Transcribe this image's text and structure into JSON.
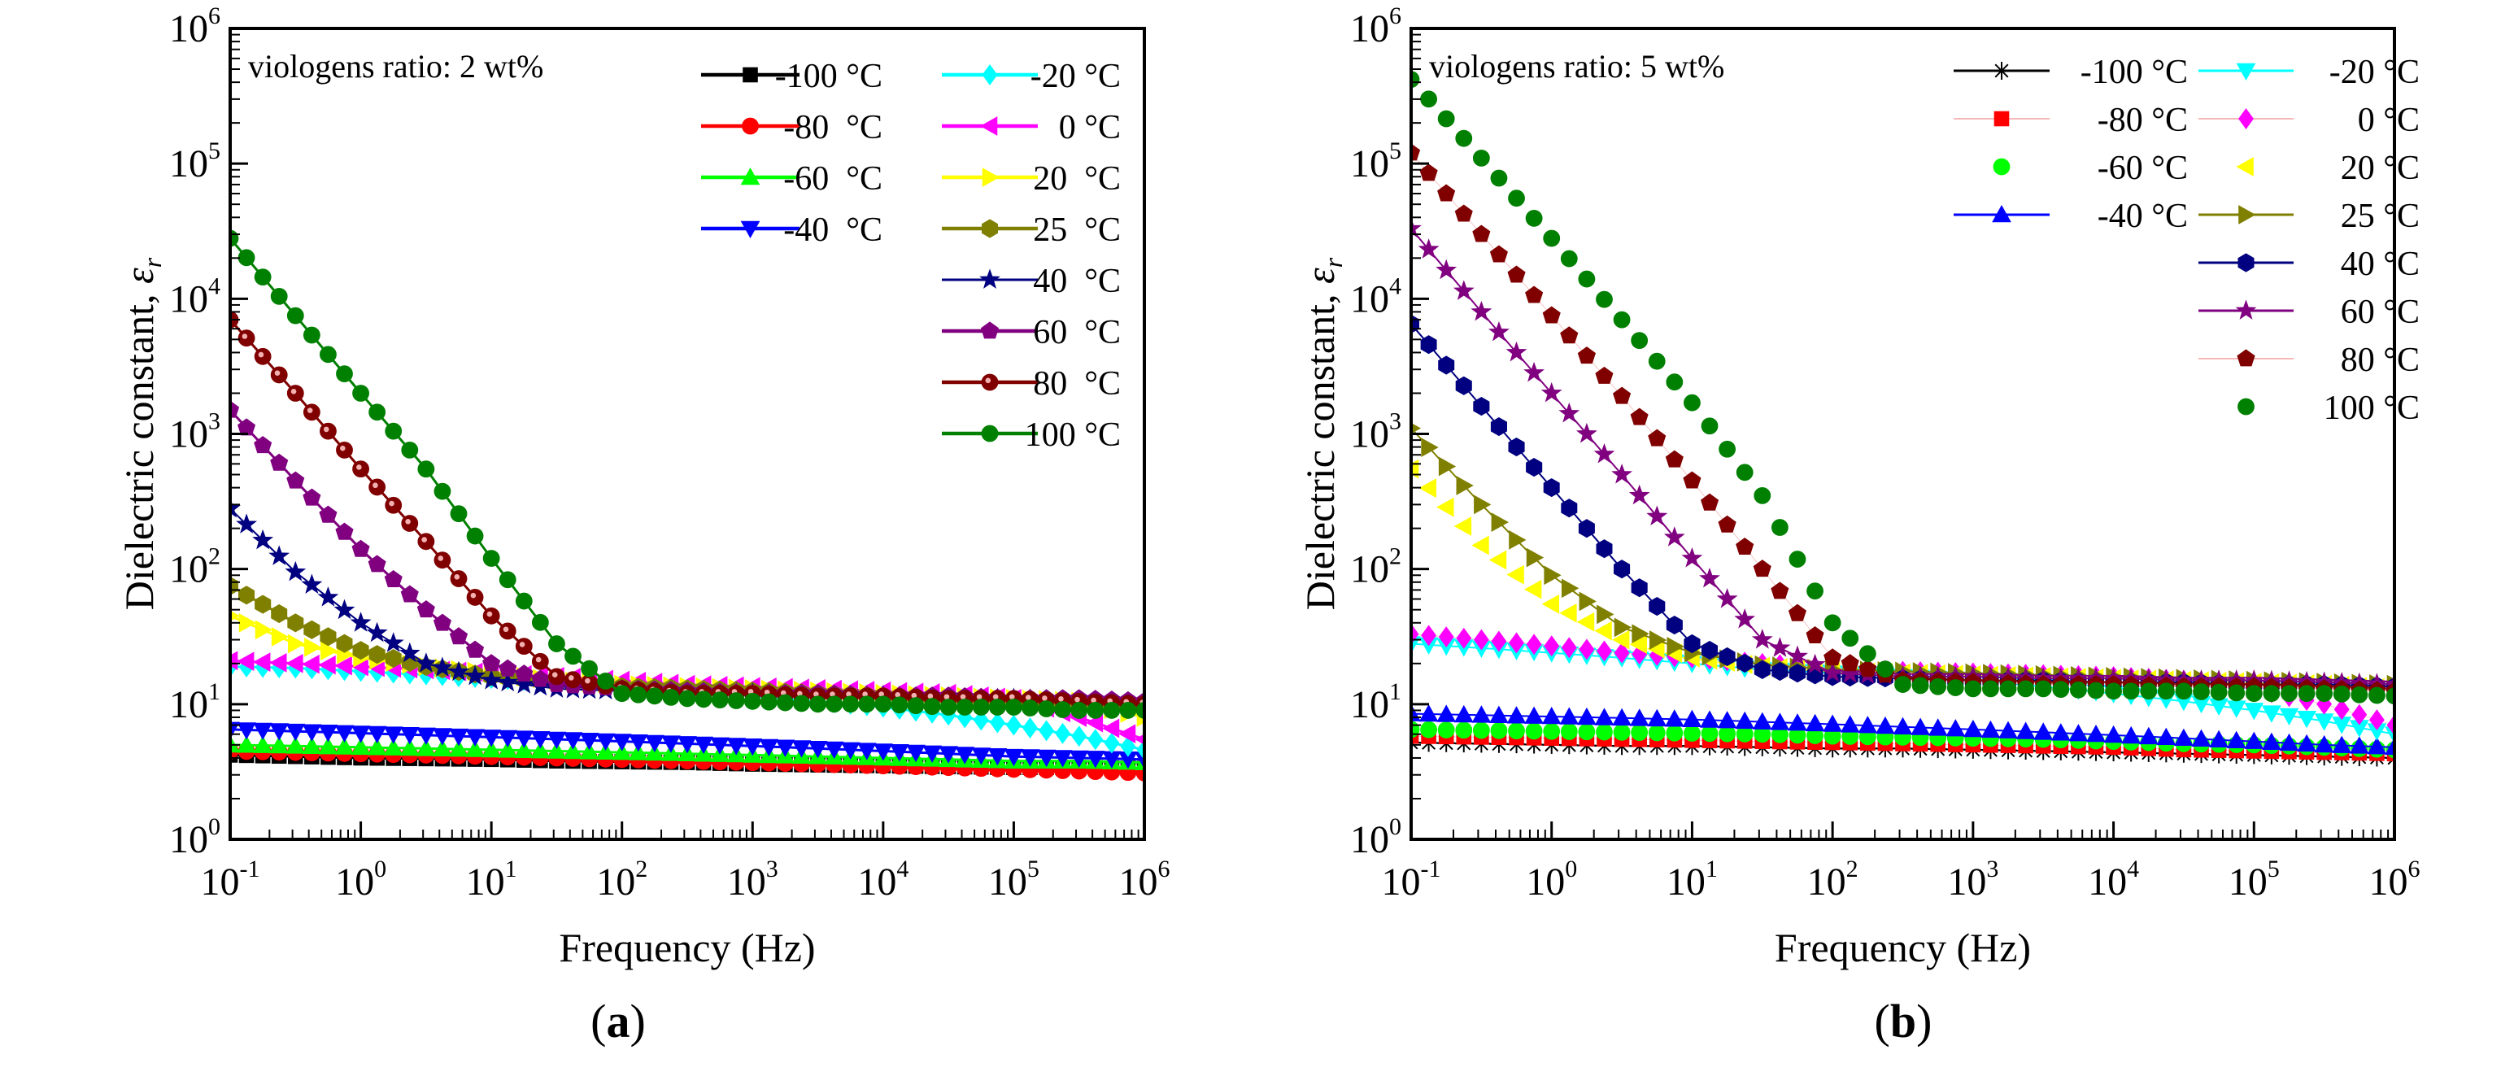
{
  "chart_data": [
    {
      "type": "scatter",
      "panel_label": "a",
      "annotation": "viologens ratio: 2 wt%",
      "xlabel": "Frequency (Hz)",
      "ylabel_main": "Dielectric constant, ",
      "ylabel_symbol": "ε",
      "ylabel_sub": "r",
      "xscale": "log",
      "yscale": "log",
      "xlim": [
        0.1,
        1000000
      ],
      "ylim": [
        1,
        1000000
      ],
      "tick_base": "10",
      "xtick_exponents": [
        "-1",
        "0",
        "1",
        "2",
        "3",
        "4",
        "5",
        "6"
      ],
      "ytick_exponents": [
        "0",
        "1",
        "2",
        "3",
        "4",
        "5",
        "6"
      ],
      "legend_placement": "top-right",
      "x": [
        0.1,
        0.316,
        1,
        3.16,
        10,
        31.6,
        100,
        316,
        1000,
        3160,
        10000,
        31600,
        100000,
        316000,
        1000000
      ],
      "series": [
        {
          "name": "-100 °C",
          "color": "#000000",
          "marker": "square",
          "values": [
            4.2,
            4.1,
            4.0,
            3.95,
            3.9,
            3.8,
            3.75,
            3.7,
            3.6,
            3.55,
            3.5,
            3.45,
            3.4,
            3.4,
            3.35
          ]
        },
        {
          "name": "-80  °C",
          "color": "#ff0000",
          "marker": "circle",
          "values": [
            4.5,
            4.4,
            4.3,
            4.2,
            4.1,
            4.0,
            3.9,
            3.8,
            3.7,
            3.6,
            3.5,
            3.4,
            3.3,
            3.2,
            3.1
          ]
        },
        {
          "name": "-60  °C",
          "color": "#00ff00",
          "marker": "triangle-up",
          "values": [
            5.0,
            4.9,
            4.8,
            4.7,
            4.6,
            4.5,
            4.4,
            4.3,
            4.2,
            4.1,
            4.0,
            3.9,
            3.8,
            3.8,
            3.7
          ]
        },
        {
          "name": "-40  °C",
          "color": "#0000ff",
          "marker": "triangle-down",
          "values": [
            6.5,
            6.3,
            6.1,
            5.9,
            5.7,
            5.5,
            5.3,
            5.1,
            4.9,
            4.7,
            4.5,
            4.3,
            4.1,
            4.0,
            3.9
          ]
        },
        {
          "name": "-20 °C",
          "color": "#00ffff",
          "marker": "diamond",
          "values": [
            19,
            18.5,
            17.5,
            16.5,
            15.5,
            14.5,
            13.5,
            12.5,
            11.5,
            10.5,
            9.5,
            8.3,
            7,
            5.8,
            4.6
          ]
        },
        {
          "name": "0 °C",
          "color": "#ff00ff",
          "marker": "triangle-left",
          "values": [
            21,
            20,
            19,
            18,
            17,
            16,
            15,
            14,
            13.5,
            13,
            12.5,
            12,
            11,
            8,
            5.5
          ]
        },
        {
          "name": "20  °C",
          "color": "#ffff00",
          "marker": "triangle-right",
          "values": [
            45,
            28,
            22,
            19,
            17,
            15,
            14,
            13.5,
            13,
            12.5,
            12,
            11.5,
            11,
            10.5,
            8
          ]
        },
        {
          "name": "25  °C",
          "color": "#808000",
          "marker": "hexagon",
          "values": [
            75,
            40,
            25,
            19,
            16,
            14.5,
            13.5,
            13,
            12.5,
            12,
            11.5,
            11,
            10.5,
            10,
            9.5
          ]
        },
        {
          "name": "40  °C",
          "color": "#000080",
          "marker": "star",
          "values": [
            280,
            95,
            40,
            20,
            15,
            13,
            12.5,
            12,
            12,
            11.5,
            11.5,
            11,
            11,
            10.5,
            10
          ]
        },
        {
          "name": "60  °C",
          "color": "#800080",
          "marker": "pentagon",
          "values": [
            1500,
            450,
            140,
            50,
            20,
            14,
            13,
            12.5,
            12,
            12,
            11.5,
            11.5,
            11,
            11,
            10.5
          ]
        },
        {
          "name": "80  °C",
          "color": "#800000",
          "marker": "ring",
          "values": [
            7000,
            2000,
            550,
            160,
            45,
            16,
            13,
            12,
            12,
            11.5,
            11.5,
            11,
            11,
            10.5,
            10
          ]
        },
        {
          "name": "100 °C",
          "color": "#008000",
          "marker": "circle",
          "values": [
            28000,
            7500,
            2000,
            550,
            120,
            28,
            12,
            11,
            10.5,
            10,
            10,
            9.5,
            9.5,
            9,
            9
          ]
        }
      ]
    },
    {
      "type": "scatter",
      "panel_label": "b",
      "annotation": "viologens ratio: 5 wt%",
      "xlabel": "Frequency (Hz)",
      "ylabel_main": "Dielectric constant, ",
      "ylabel_symbol": "ε",
      "ylabel_sub": "r",
      "xscale": "log",
      "yscale": "log",
      "xlim": [
        0.1,
        1000000
      ],
      "ylim": [
        1,
        1000000
      ],
      "tick_base": "10",
      "xtick_exponents": [
        "-1",
        "0",
        "1",
        "2",
        "3",
        "4",
        "5",
        "6"
      ],
      "ytick_exponents": [
        "0",
        "1",
        "2",
        "3",
        "4",
        "5",
        "6"
      ],
      "legend_placement": "top-right",
      "x": [
        0.1,
        0.316,
        1,
        3.16,
        10,
        31.6,
        100,
        316,
        1000,
        3160,
        10000,
        31600,
        100000,
        316000,
        1000000
      ],
      "series": [
        {
          "name": "-100 °C",
          "color": "#000000",
          "marker": "asterisk",
          "values": [
            5.2,
            5.1,
            5.0,
            4.9,
            4.9,
            4.8,
            4.7,
            4.7,
            4.6,
            4.5,
            4.4,
            4.3,
            4.2,
            4.1,
            4.0
          ]
        },
        {
          "name": "-80 °C",
          "color": "#ff0000",
          "marker": "square",
          "values": [
            5.8,
            5.7,
            5.6,
            5.5,
            5.4,
            5.3,
            5.2,
            5.1,
            5.0,
            4.9,
            4.8,
            4.6,
            4.5,
            4.4,
            4.3
          ]
        },
        {
          "name": "-60 °C",
          "color": "#00ff00",
          "marker": "circle",
          "values": [
            6.5,
            6.4,
            6.3,
            6.2,
            6.1,
            6.0,
            5.8,
            5.7,
            5.6,
            5.5,
            5.3,
            5.1,
            5.0,
            4.8,
            4.6
          ]
        },
        {
          "name": "-40 °C",
          "color": "#0000ff",
          "marker": "triangle-up",
          "values": [
            8.5,
            8.3,
            8.1,
            7.9,
            7.7,
            7.4,
            7.1,
            6.8,
            6.5,
            6.2,
            5.9,
            5.6,
            5.3,
            5.0,
            4.8
          ]
        },
        {
          "name": "-20 °C",
          "color": "#00ffff",
          "marker": "triangle-down",
          "values": [
            28,
            26,
            24,
            22,
            20,
            18,
            17,
            16,
            15,
            13.5,
            12,
            10.5,
            9,
            7.5,
            6
          ]
        },
        {
          "name": "0 °C",
          "color": "#ff00ff",
          "marker": "diamond",
          "values": [
            33,
            30,
            27,
            24,
            22,
            20,
            18.5,
            17.5,
            17,
            16.5,
            16,
            15,
            13,
            10,
            7
          ]
        },
        {
          "name": "20 °C",
          "color": "#ffff00",
          "marker": "triangle-left",
          "values": [
            550,
            150,
            55,
            30,
            22,
            19,
            17.5,
            17,
            16.5,
            16,
            15.5,
            15,
            14.5,
            14,
            13
          ]
        },
        {
          "name": "25 °C",
          "color": "#808000",
          "marker": "triangle-right",
          "values": [
            1100,
            300,
            90,
            37,
            24,
            19.5,
            18,
            17.5,
            17,
            16.5,
            16,
            15.5,
            15,
            14.5,
            14
          ]
        },
        {
          "name": "40 °C",
          "color": "#000080",
          "marker": "hexagon",
          "values": [
            6500,
            1600,
            400,
            100,
            28,
            18,
            16,
            15.5,
            15,
            15,
            14.5,
            14.5,
            14,
            14,
            13.5
          ]
        },
        {
          "name": "60 °C",
          "color": "#800080",
          "marker": "star",
          "values": [
            33000,
            8000,
            2000,
            500,
            120,
            30,
            17,
            16,
            16,
            15.5,
            15.5,
            15,
            15,
            14.5,
            14
          ]
        },
        {
          "name": "80 °C",
          "color": "#800000",
          "marker": "pentagon",
          "values": [
            120000,
            30000,
            7500,
            1900,
            450,
            100,
            22,
            15,
            14.5,
            14,
            14,
            13.5,
            13.5,
            13,
            12.5
          ]
        },
        {
          "name": "100 °C",
          "color": "#008000",
          "marker": "circle",
          "values": [
            420000,
            110000,
            28000,
            7000,
            1700,
            350,
            40,
            14,
            13,
            13,
            12.5,
            12.5,
            12,
            12,
            11.5
          ]
        }
      ]
    }
  ]
}
